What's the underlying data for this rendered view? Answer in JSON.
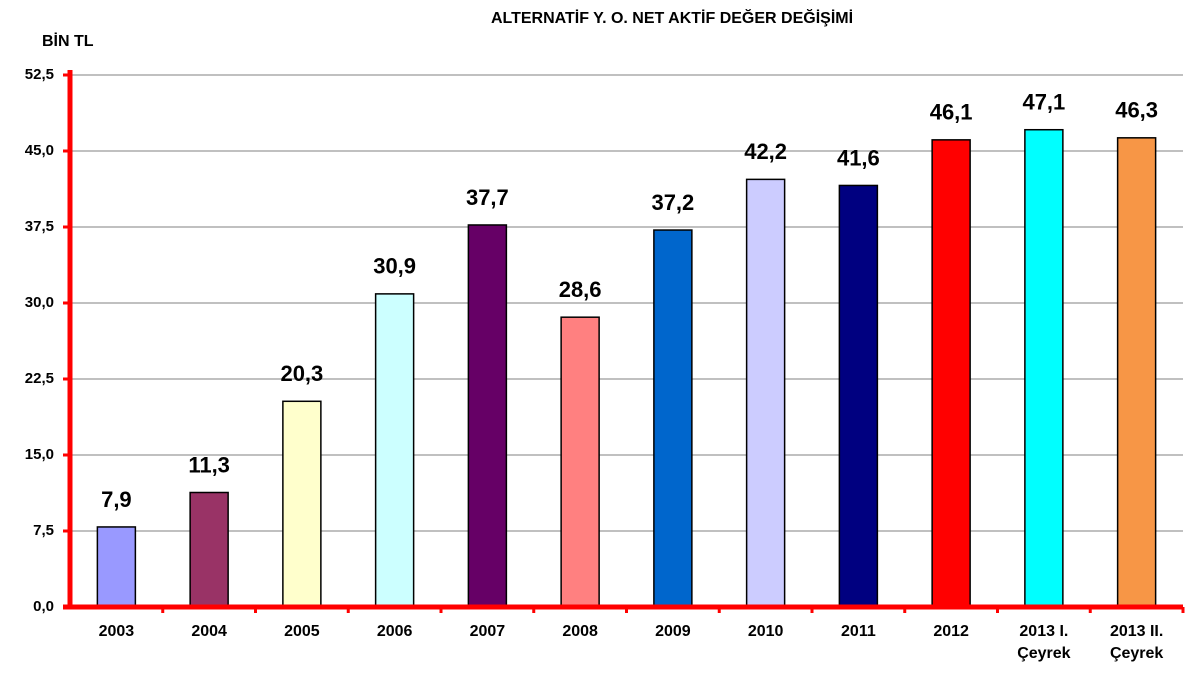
{
  "chart_data": {
    "type": "bar",
    "title": "ALTERNATİF  Y. O.  NET AKTİF DEĞER DEĞİŞİMİ",
    "y_axis_label": "BİN TL",
    "categories": [
      "2003",
      "2004",
      "2005",
      "2006",
      "2007",
      "2008",
      "2009",
      "2010",
      "2011",
      "2012",
      "2013 I. Çeyrek",
      "2013 II. Çeyrek"
    ],
    "values": [
      7.9,
      11.3,
      20.3,
      30.9,
      37.7,
      28.6,
      37.2,
      42.2,
      41.6,
      46.1,
      47.1,
      46.3
    ],
    "value_labels": [
      "7,9",
      "11,3",
      "20,3",
      "30,9",
      "37,7",
      "28,6",
      "37,2",
      "42,2",
      "41,6",
      "46,1",
      "47,1",
      "46,3"
    ],
    "colors": [
      "#9999ff",
      "#993366",
      "#ffffcc",
      "#ccffff",
      "#660066",
      "#ff8080",
      "#0066cc",
      "#ccccff",
      "#000080",
      "#ff0000",
      "#00ffff",
      "#f79646"
    ],
    "ylim": [
      0,
      52.5
    ],
    "yticks": [
      {
        "value": 0,
        "label": "0,0"
      },
      {
        "value": 7.5,
        "label": "7,5"
      },
      {
        "value": 15,
        "label": "15,0"
      },
      {
        "value": 22.5,
        "label": "22,5"
      },
      {
        "value": 30,
        "label": "30,0"
      },
      {
        "value": 37.5,
        "label": "37,5"
      },
      {
        "value": 45,
        "label": "45,0"
      },
      {
        "value": 52.5,
        "label": "52,5"
      }
    ],
    "grid": true
  }
}
